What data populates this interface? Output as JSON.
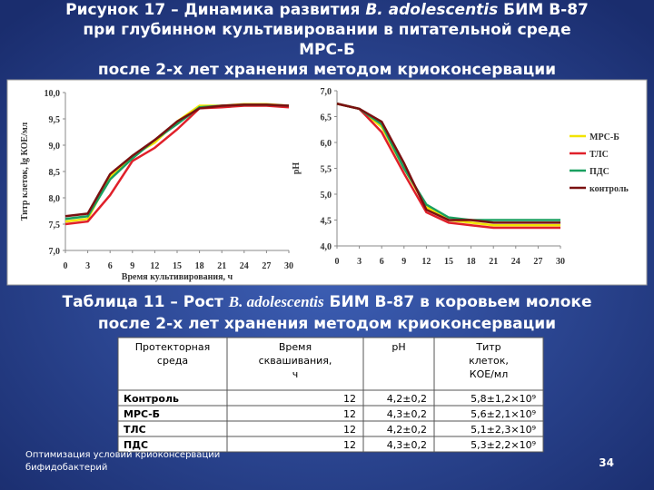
{
  "slide": {
    "title": [
      "Рисунок 17 – Динамика развития ",
      "B. adolescentis",
      " БИМ В-87",
      "при  глубинном культивировании в питательной среде",
      "МРС-Б",
      "после 2-х лет хранения методом криоконсервации"
    ],
    "caption": [
      "Таблица 11 – Рост ",
      "B. adolescentis",
      " БИМ В-87 в коровьем молоке",
      "после 2-х лет хранения методом криоконсервации"
    ],
    "footer": [
      "Оптимизация  условий криоконсервации",
      "бифидобактерий"
    ],
    "page": "34"
  },
  "table": {
    "header": [
      "Протекторная среда",
      "Время сквашивания, ч",
      "pH",
      "Титр клеток, КОЕ/мл"
    ],
    "rows": [
      [
        "Контроль",
        "12",
        "4,2±0,2",
        "5,8±1,2×10⁹"
      ],
      [
        "МРС-Б",
        "12",
        "4,3±0,2",
        "5,6±2,1×10⁹"
      ],
      [
        "ТЛС",
        "12",
        "4,2±0,2",
        "5,1±2,3×10⁹"
      ],
      [
        "ПДС",
        "12",
        "4,3±0,2",
        "5,3±2,2×10⁹"
      ]
    ]
  },
  "chart_data": [
    {
      "type": "line",
      "x_label": "Время культивирования, ч",
      "y_label": "Титр клеток, lg КОЕ/мл",
      "x": [
        0,
        3,
        6,
        9,
        12,
        15,
        18,
        21,
        24,
        27,
        30
      ],
      "xlim": [
        0,
        30
      ],
      "xticks": [
        0,
        3,
        6,
        9,
        12,
        15,
        18,
        21,
        24,
        27,
        30
      ],
      "ylim": [
        7,
        10
      ],
      "yticks": [
        {
          "value": 7,
          "label": "7,0"
        },
        {
          "value": 7.5,
          "label": "7,5"
        },
        {
          "value": 8,
          "label": "8,0"
        },
        {
          "value": 8.5,
          "label": "8,5"
        },
        {
          "value": 9,
          "label": "9,0"
        },
        {
          "value": 9.5,
          "label": "9,5"
        },
        {
          "value": 10,
          "label": "10,0"
        }
      ],
      "series": [
        {
          "color": "#f2e400",
          "values": [
            7.55,
            7.6,
            8.4,
            8.8,
            9.05,
            9.45,
            9.75,
            9.75,
            9.78,
            9.78,
            9.75
          ]
        },
        {
          "color": "#e0202a",
          "values": [
            7.5,
            7.55,
            8.05,
            8.7,
            8.95,
            9.3,
            9.7,
            9.72,
            9.75,
            9.75,
            9.72
          ]
        },
        {
          "color": "#1aa060",
          "values": [
            7.6,
            7.65,
            8.35,
            8.75,
            9.1,
            9.4,
            9.72,
            9.75,
            9.77,
            9.77,
            9.75
          ]
        },
        {
          "color": "#7a1010",
          "values": [
            7.65,
            7.7,
            8.45,
            8.8,
            9.1,
            9.45,
            9.7,
            9.75,
            9.77,
            9.77,
            9.75
          ]
        }
      ]
    },
    {
      "type": "line",
      "y_label": "pH",
      "x": [
        0,
        3,
        6,
        9,
        12,
        15,
        18,
        21,
        24,
        27,
        30
      ],
      "xlim": [
        0,
        30
      ],
      "xticks": [
        0,
        3,
        6,
        9,
        12,
        15,
        18,
        21,
        24,
        27,
        30
      ],
      "ylim": [
        4,
        7
      ],
      "yticks": [
        {
          "value": 4,
          "label": "4,0"
        },
        {
          "value": 4.5,
          "label": "4,5"
        },
        {
          "value": 5,
          "label": "5,0"
        },
        {
          "value": 5.5,
          "label": "5,5"
        },
        {
          "value": 6,
          "label": "6,0"
        },
        {
          "value": 6.5,
          "label": "6,5"
        },
        {
          "value": 7,
          "label": "7,0"
        }
      ],
      "series": [
        {
          "name": "МРС-Б",
          "color": "#f2e400",
          "values": [
            6.75,
            6.65,
            6.3,
            5.5,
            4.75,
            4.5,
            4.45,
            4.4,
            4.4,
            4.4,
            4.4
          ]
        },
        {
          "name": "ТЛС",
          "color": "#e0202a",
          "values": [
            6.75,
            6.65,
            6.2,
            5.4,
            4.65,
            4.45,
            4.4,
            4.35,
            4.35,
            4.35,
            4.35
          ]
        },
        {
          "name": "ПДС",
          "color": "#1aa060",
          "values": [
            6.75,
            6.65,
            6.35,
            5.5,
            4.8,
            4.55,
            4.5,
            4.5,
            4.5,
            4.5,
            4.5
          ]
        },
        {
          "name": "контроль",
          "color": "#7a1010",
          "values": [
            6.75,
            6.65,
            6.4,
            5.6,
            4.7,
            4.5,
            4.5,
            4.45,
            4.45,
            4.45,
            4.45
          ]
        }
      ]
    }
  ]
}
